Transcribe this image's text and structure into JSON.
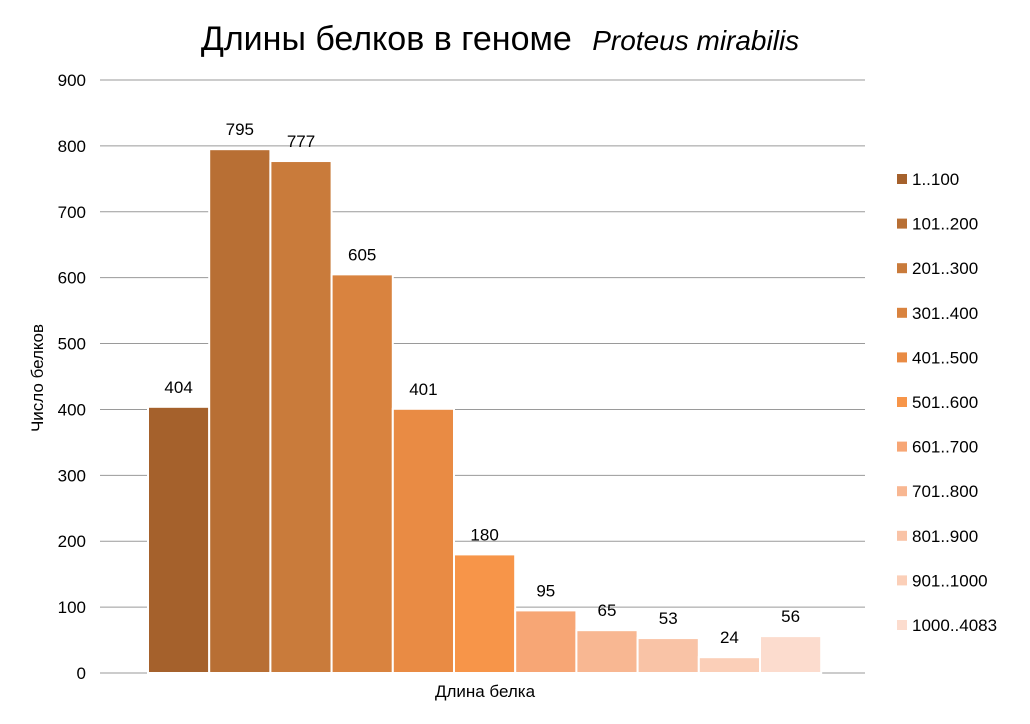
{
  "chart_data": {
    "type": "bar",
    "title": "Длины белков в геноме",
    "title_species": "Proteus mirabilis",
    "xlabel": "Длина белка",
    "ylabel": "Число белков",
    "ylim": [
      0,
      900
    ],
    "y_ticks": [
      "0",
      "100",
      "200",
      "300",
      "400",
      "500",
      "600",
      "700",
      "800",
      "900"
    ],
    "grid": true,
    "legend_position": "right",
    "categories": [
      "1..100",
      "101..200",
      "201..300",
      "301..400",
      "401..500",
      "501..600",
      "601..700",
      "701..800",
      "801..900",
      "901..1000",
      "1000..4083"
    ],
    "values": [
      404,
      795,
      777,
      605,
      401,
      180,
      95,
      65,
      53,
      24,
      56
    ],
    "colors": [
      "#a5612c",
      "#b86f34",
      "#c97b3b",
      "#d9833f",
      "#e98b44",
      "#f79549",
      "#f7a675",
      "#f8b792",
      "#f9c3a6",
      "#fbcfb8",
      "#fcdcce"
    ]
  }
}
